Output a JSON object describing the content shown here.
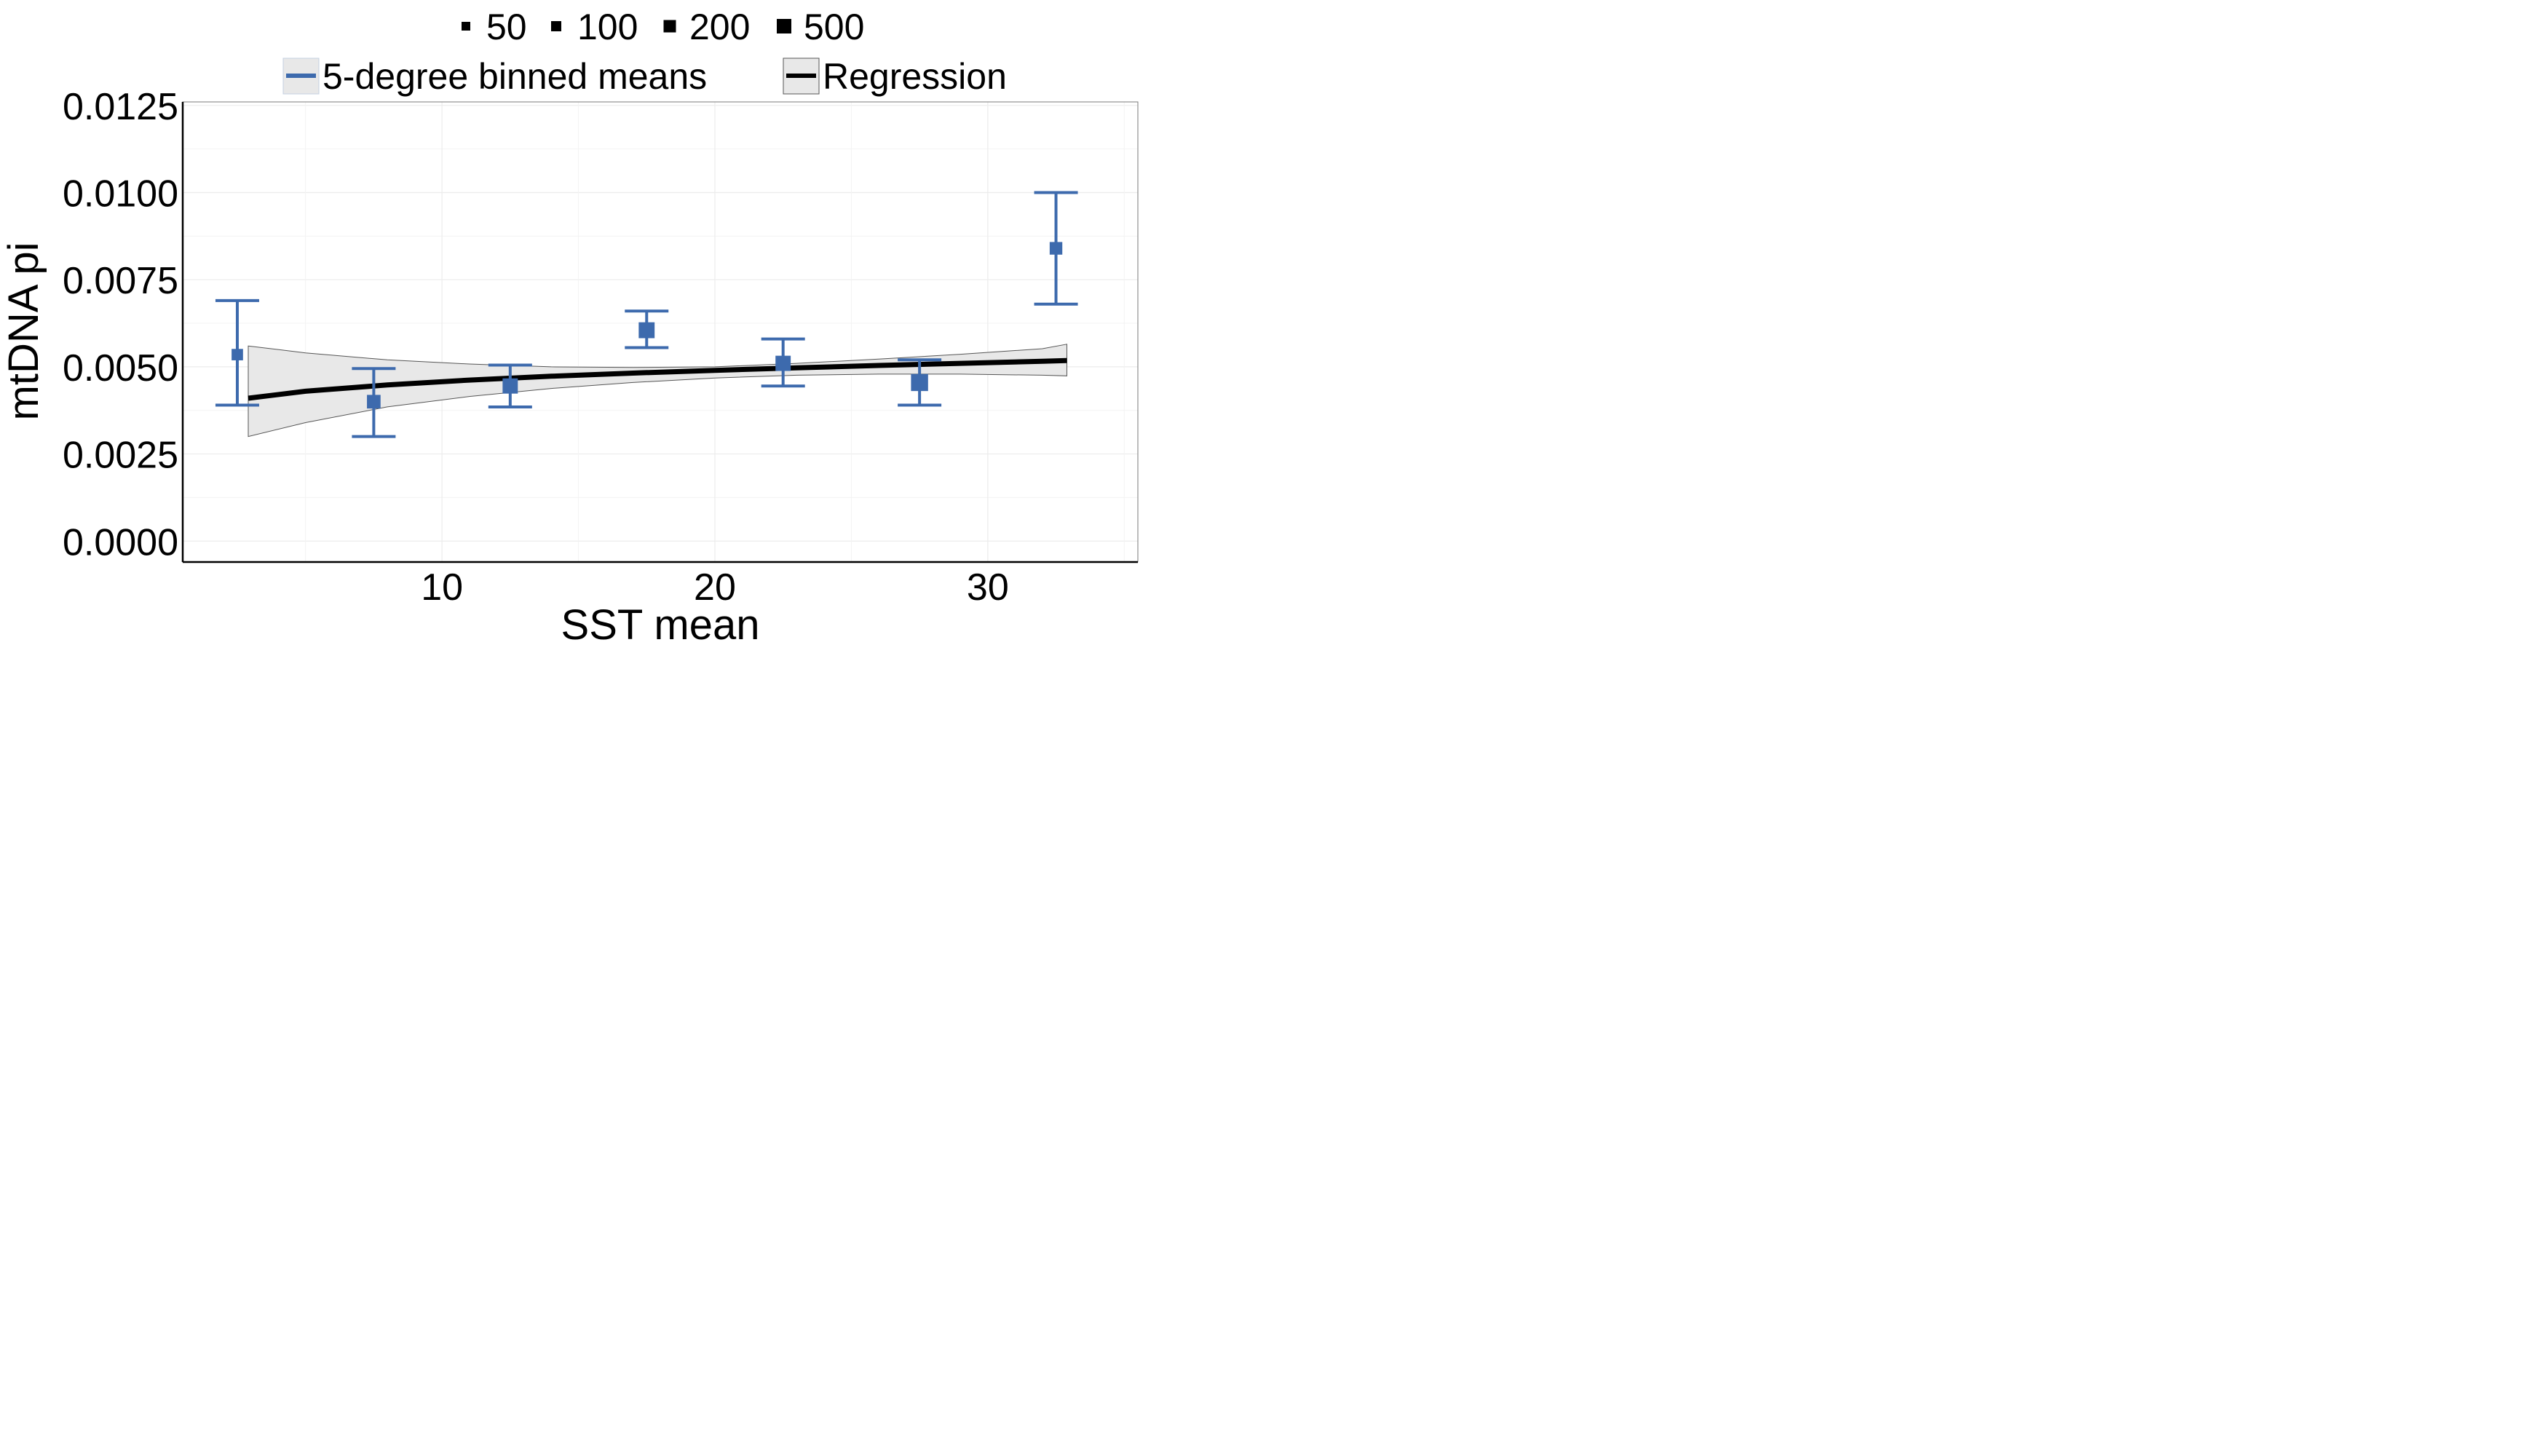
{
  "chart_data": {
    "type": "scatter",
    "title": "",
    "xlabel": "SST mean",
    "ylabel": "mtDNA pi",
    "xlim": [
      0.5,
      35.5
    ],
    "ylim": [
      -0.0006,
      0.0126
    ],
    "x_ticks": [
      {
        "value": 10,
        "label": "10"
      },
      {
        "value": 20,
        "label": "20"
      },
      {
        "value": 30,
        "label": "30"
      }
    ],
    "y_ticks": [
      {
        "value": 0.0,
        "label": "0.0000"
      },
      {
        "value": 0.0025,
        "label": "0.0025"
      },
      {
        "value": 0.005,
        "label": "0.0050"
      },
      {
        "value": 0.0075,
        "label": "0.0075"
      },
      {
        "value": 0.01,
        "label": "0.0100"
      },
      {
        "value": 0.0125,
        "label": "0.0125"
      }
    ],
    "grid": true,
    "legend_position": "top",
    "size_legend": {
      "items": [
        {
          "label": "50",
          "size": 50
        },
        {
          "label": "100",
          "size": 100
        },
        {
          "label": "200",
          "size": 200
        },
        {
          "label": "500",
          "size": 500
        }
      ]
    },
    "series_legend": {
      "items": [
        {
          "label": "5-degree binned means",
          "color": "#3d6aad"
        },
        {
          "label": "Regression",
          "color": "#000000"
        }
      ]
    },
    "series": [
      {
        "name": "5-degree binned means",
        "kind": "point-errorbar",
        "color": "#3d6aad",
        "points": [
          {
            "x": 2.5,
            "y": 0.00535,
            "ymin": 0.0039,
            "ymax": 0.0069,
            "n": 90
          },
          {
            "x": 7.5,
            "y": 0.004,
            "ymin": 0.003,
            "ymax": 0.00495,
            "n": 210
          },
          {
            "x": 12.5,
            "y": 0.00445,
            "ymin": 0.00385,
            "ymax": 0.00505,
            "n": 330
          },
          {
            "x": 17.5,
            "y": 0.00605,
            "ymin": 0.00555,
            "ymax": 0.0066,
            "n": 390
          },
          {
            "x": 22.5,
            "y": 0.0051,
            "ymin": 0.00445,
            "ymax": 0.0058,
            "n": 330
          },
          {
            "x": 27.5,
            "y": 0.00455,
            "ymin": 0.0039,
            "ymax": 0.0052,
            "n": 500
          },
          {
            "x": 32.5,
            "y": 0.0084,
            "ymin": 0.0068,
            "ymax": 0.01,
            "n": 150
          }
        ]
      },
      {
        "name": "Regression",
        "kind": "line-ribbon",
        "color": "#000000",
        "ribbon_color": "#e8e8e8",
        "x": [
          2.9,
          5.0,
          8.0,
          11.0,
          14.0,
          17.0,
          20.0,
          23.0,
          26.0,
          29.0,
          32.0,
          32.9
        ],
        "y": [
          0.0041,
          0.0043,
          0.00448,
          0.00462,
          0.00473,
          0.00482,
          0.0049,
          0.00497,
          0.00504,
          0.0051,
          0.00516,
          0.00518
        ],
        "ymin": [
          0.003,
          0.0034,
          0.00385,
          0.00415,
          0.00438,
          0.00455,
          0.00468,
          0.00476,
          0.00479,
          0.00479,
          0.00476,
          0.00474
        ],
        "ymax": [
          0.0056,
          0.0054,
          0.0052,
          0.00508,
          0.005,
          0.00498,
          0.005,
          0.0051,
          0.00522,
          0.00536,
          0.00552,
          0.00565
        ]
      }
    ]
  }
}
